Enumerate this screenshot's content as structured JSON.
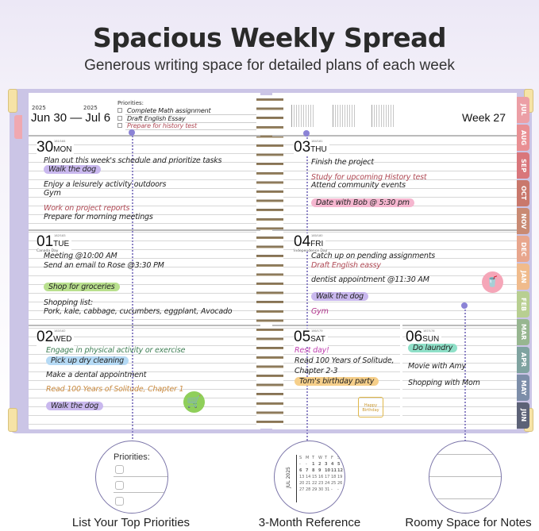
{
  "header": {
    "title": "Spacious Weekly Spread",
    "subtitle": "Generous writing space for detailed plans of each week"
  },
  "week": {
    "year_start": "2025",
    "year_end": "2025",
    "range": "Jun 30 — Jul 6",
    "week_label": "Week 27"
  },
  "priorities": {
    "label": "Priorities:",
    "items": [
      "Complete Math assignment",
      "Draft English Essay",
      "Prepare for history test"
    ]
  },
  "colors": {
    "cover": "#cbc5e6",
    "accent_pin": "#8b83d6",
    "red_ink": "#b04a55",
    "highlight_purple": "#c9b8ee",
    "highlight_green": "#b9e08e",
    "highlight_blue": "#b5daf5",
    "highlight_pink": "#f5b6cf",
    "highlight_orange": "#f6cf8a",
    "highlight_teal": "#8fe0c8"
  },
  "tabs": [
    {
      "label": "JUL",
      "color": "#ec9fa6"
    },
    {
      "label": "AUG",
      "color": "#e98f93"
    },
    {
      "label": "SEP",
      "color": "#d9767b"
    },
    {
      "label": "OCT",
      "color": "#c9786c"
    },
    {
      "label": "NOV",
      "color": "#c98a73"
    },
    {
      "label": "DEC",
      "color": "#e8a68d"
    },
    {
      "label": "JAN",
      "color": "#f0bb8c"
    },
    {
      "label": "FEB",
      "color": "#b8cf91"
    },
    {
      "label": "MAR",
      "color": "#97b690"
    },
    {
      "label": "APR",
      "color": "#7fa3a0"
    },
    {
      "label": "MAY",
      "color": "#7d8ea9"
    },
    {
      "label": "JUN",
      "color": "#5c6277"
    }
  ],
  "days": [
    {
      "num": "30",
      "dow": "MON",
      "yearday": "181/184",
      "holiday": "",
      "entries": [
        {
          "text": "Plan out this week's schedule and prioritize tasks"
        },
        {
          "text": "Walk the dog",
          "hl": "#c9b8ee"
        },
        {
          "text": "Enjoy a leisurely activity outdoors"
        },
        {
          "text": "Gym"
        },
        {
          "text": "Work on project reports",
          "ink": "#b04a55"
        },
        {
          "text": "Prepare for morning meetings"
        }
      ]
    },
    {
      "num": "01",
      "dow": "TUE",
      "yearday": "182/183",
      "holiday": "Canada Day",
      "entries": [
        {
          "text": "Meeting @10:00 AM"
        },
        {
          "text": "Send an email to Rose @3:30 PM"
        },
        {
          "text": "Shop for groceries",
          "hl": "#b9e08e"
        },
        {
          "text": "Shopping list:"
        },
        {
          "text": "Pork, kale, cabbage, cucumbers, eggplant, Avocado"
        }
      ]
    },
    {
      "num": "02",
      "dow": "WED",
      "yearday": "183/182",
      "holiday": "",
      "entries": [
        {
          "text": "Engage in physical activity or exercise",
          "ink": "#3f7f55"
        },
        {
          "text": "Pick up dry cleaning",
          "hl": "#b5daf5"
        },
        {
          "text": "Make a dental appointment"
        },
        {
          "text": "Read 100 Years of Solitude, Chapter 1",
          "ink": "#c98a3f"
        },
        {
          "text": "Walk the dog",
          "hl": "#c9b8ee"
        }
      ]
    },
    {
      "num": "03",
      "dow": "THU",
      "yearday": "184/181",
      "holiday": "",
      "entries": [
        {
          "text": "Finish the project"
        },
        {
          "text": "Study for upcoming History test",
          "ink": "#b04a55"
        },
        {
          "text": "Attend community events"
        },
        {
          "text": "Date with Bob @ 5:30 pm",
          "hl": "#f5b6cf"
        }
      ]
    },
    {
      "num": "04",
      "dow": "FRI",
      "yearday": "185/180",
      "holiday": "Independence Day",
      "entries": [
        {
          "text": "Catch up on pending assignments"
        },
        {
          "text": "Draft English eassy",
          "ink": "#b04a55"
        },
        {
          "text": "dentist appointment @11:30 AM"
        },
        {
          "text": "Walk the dog",
          "hl": "#c9b8ee"
        },
        {
          "text": "Gym",
          "ink": "#b0308a"
        }
      ]
    },
    {
      "num": "05",
      "dow": "SAT",
      "yearday": "186/179",
      "holiday": "",
      "entries": [
        {
          "text": "Rest day!",
          "ink": "#c040b0"
        },
        {
          "text": "Read 100 Years of Solitude,"
        },
        {
          "text": "Chapter 2-3"
        },
        {
          "text": "Tom's birthday party",
          "hl": "#f6cf8a"
        }
      ]
    },
    {
      "num": "06",
      "dow": "SUN",
      "yearday": "187/178",
      "holiday": "",
      "entries": [
        {
          "text": "Do laundry",
          "hl": "#8fe0c8"
        },
        {
          "text": "Movie with Amy"
        },
        {
          "text": "Shopping with Mom"
        }
      ]
    }
  ],
  "stickers": {
    "cart": "shopping-cart-icon",
    "drink": "drink-cup-icon",
    "cake": "birthday-cake-icon",
    "cake_text": "Happy Birthday"
  },
  "features": [
    {
      "label": "List Your Top Priorities",
      "zoom_title": "Priorities:"
    },
    {
      "label": "3-Month Reference",
      "zoom_month": "JUL 2025",
      "weekdays": [
        "S",
        "M",
        "T",
        "W",
        "T",
        "F",
        "S"
      ],
      "weeks": [
        [
          "-",
          "-",
          "1",
          "2",
          "3",
          "4",
          "5"
        ],
        [
          "6",
          "7",
          "8",
          "9",
          "10",
          "11",
          "12"
        ],
        [
          "13",
          "14",
          "15",
          "16",
          "17",
          "18",
          "19"
        ],
        [
          "20",
          "21",
          "22",
          "23",
          "24",
          "25",
          "26"
        ],
        [
          "27",
          "28",
          "29",
          "30",
          "31",
          "-",
          "-"
        ]
      ]
    },
    {
      "label": "Roomy Space for Notes"
    }
  ]
}
